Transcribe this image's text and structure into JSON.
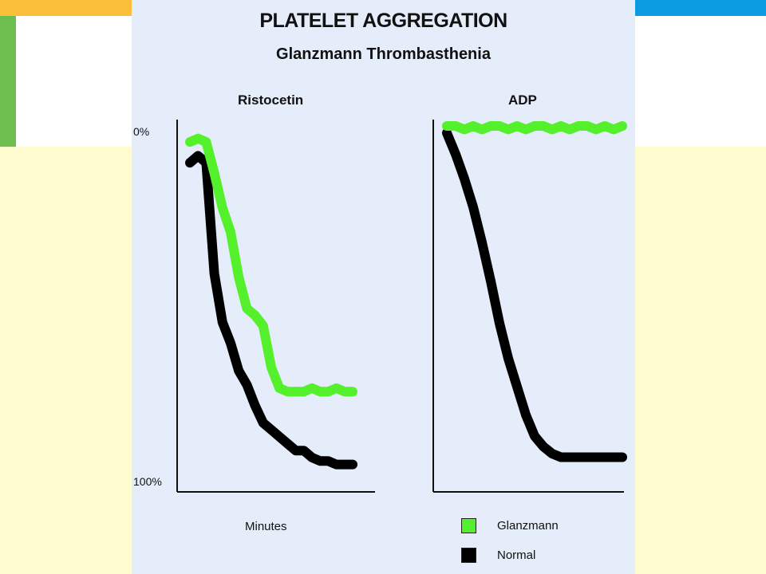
{
  "colors": {
    "slide_orange": "#fbbf3b",
    "slide_blue": "#0a9be0",
    "slide_green": "#6cbf4f",
    "slide_yellow": "#fffccf",
    "panel_bg": "#e5ecfa",
    "glanzmann": "#55f02c",
    "normal": "#000000",
    "axis": "#111111"
  },
  "figure": {
    "title": "PLATELET AGGREGATION",
    "subtitle": "Glanzmann Thrombasthenia",
    "xlabel": "Minutes",
    "y_tick_top": "0%",
    "y_tick_bottom": "100%"
  },
  "chart_data": [
    {
      "type": "line",
      "title": "Ristocetin",
      "xlabel": "Minutes",
      "ylabel": "",
      "yticks": [
        "0%",
        "100%"
      ],
      "ylim": [
        0,
        100
      ],
      "y_inverted": true,
      "x": [
        0,
        0.5,
        1,
        1.5,
        2,
        2.5,
        3,
        3.5,
        4,
        4.5,
        5,
        5.5,
        6,
        6.5,
        7,
        7.5,
        8,
        8.5,
        9,
        9.5,
        10
      ],
      "series": [
        {
          "name": "Glanzmann",
          "color": "#55f02c",
          "values": [
            3,
            2,
            3,
            12,
            22,
            29,
            42,
            51,
            53,
            56,
            68,
            74,
            75,
            75,
            75,
            74,
            75,
            75,
            74,
            75,
            75
          ]
        },
        {
          "name": "Normal",
          "color": "#000000",
          "values": [
            9,
            7,
            9,
            41,
            55,
            61,
            69,
            73,
            79,
            84,
            86,
            88,
            90,
            92,
            92,
            94,
            95,
            95,
            96,
            96,
            96
          ]
        }
      ]
    },
    {
      "type": "line",
      "title": "ADP",
      "xlabel": "Minutes",
      "ylabel": "",
      "ylim": [
        0,
        100
      ],
      "y_inverted": true,
      "x": [
        0,
        0.5,
        1,
        1.5,
        2,
        2.5,
        3,
        3.5,
        4,
        4.5,
        5,
        5.5,
        6,
        6.5,
        7,
        7.5,
        8,
        8.5,
        9,
        9.5,
        10
      ],
      "series": [
        {
          "name": "Glanzmann",
          "color": "#55f02c",
          "values": [
            0,
            0,
            1,
            0,
            1,
            0,
            0,
            1,
            0,
            1,
            0,
            0,
            1,
            0,
            1,
            0,
            0,
            1,
            0,
            1,
            0
          ]
        },
        {
          "name": "Normal",
          "color": "#000000",
          "values": [
            2,
            8,
            15,
            23,
            33,
            44,
            56,
            66,
            74,
            82,
            88,
            91,
            93,
            94,
            94,
            94,
            94,
            94,
            94,
            94,
            94
          ]
        }
      ]
    }
  ],
  "legend": [
    {
      "label": "Glanzmann",
      "color": "#55f02c"
    },
    {
      "label": "Normal",
      "color": "#000000"
    }
  ]
}
